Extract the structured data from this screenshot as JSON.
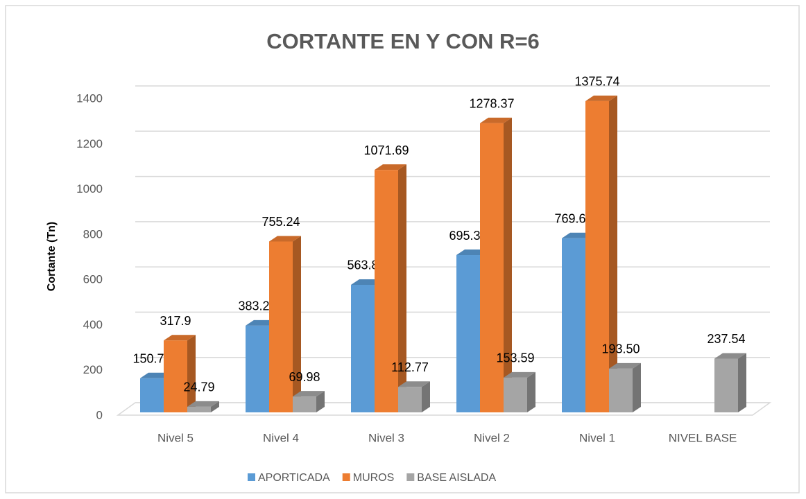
{
  "chart_data": {
    "type": "bar",
    "title": "CORTANTE EN Y CON R=6",
    "y_label": "Cortante (Tn)",
    "categories": [
      "Nivel 5",
      "Nivel 4",
      "Nivel 3",
      "Nivel 2",
      "Nivel 1",
      "NIVEL BASE"
    ],
    "series": [
      {
        "name": "APORTICADA",
        "color": "#5b9bd5",
        "values": [
          150.73,
          383.25,
          563.8,
          695.37,
          769.65,
          null
        ]
      },
      {
        "name": "MUROS",
        "color": "#ed7d31",
        "values": [
          317.9,
          755.24,
          1071.69,
          1278.37,
          1375.74,
          null
        ]
      },
      {
        "name": "BASE AISLADA",
        "color": "#a5a5a5",
        "values": [
          24.79,
          69.98,
          112.77,
          153.59,
          193.5,
          237.54
        ],
        "value_labels": [
          "24.79",
          "69.98",
          "112.77",
          "153.59",
          "193.50",
          "237.54"
        ]
      }
    ],
    "ylim": [
      0,
      1400
    ],
    "yticks": [
      0,
      200,
      400,
      600,
      800,
      1000,
      1200,
      1400
    ],
    "grid": true,
    "legend": "bottom"
  }
}
